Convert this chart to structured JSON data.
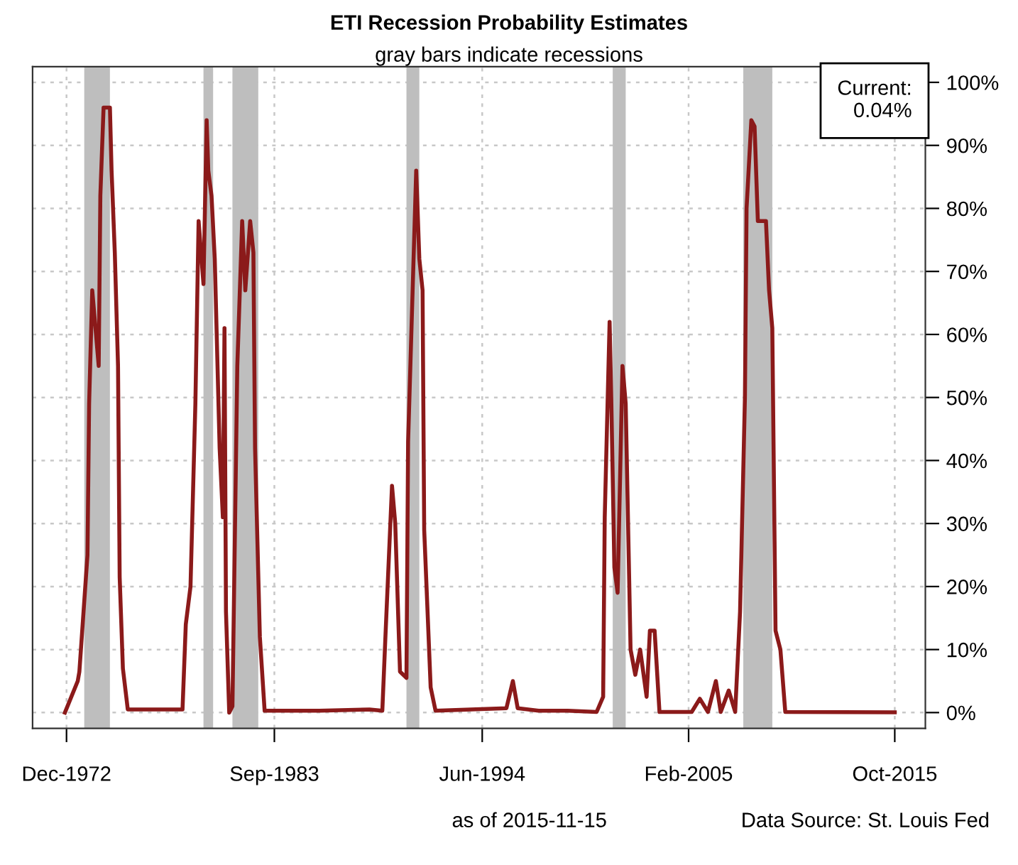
{
  "chart_data": {
    "type": "line",
    "title": "ETI Recession Probability Estimates",
    "subtitle": "gray bars indicate recessions",
    "annotations": [
      "Current:\n0.04%",
      "as of 2015-11-15",
      "Data Source: St. Louis Fed"
    ],
    "x": [
      "1972-11",
      "1973-07",
      "1973-08",
      "1974-01",
      "1974-02",
      "1974-04",
      "1974-08",
      "1974-09",
      "1974-11",
      "1975-03",
      "1975-04",
      "1975-06",
      "1975-08",
      "1975-09",
      "1975-11",
      "1976-02",
      "1978-12",
      "1979-02",
      "1979-05",
      "1979-08",
      "1979-10",
      "1980-01",
      "1980-03",
      "1980-04",
      "1980-06",
      "1980-08",
      "1980-11",
      "1981-01",
      "1981-02",
      "1981-03",
      "1981-05",
      "1981-07",
      "1981-10",
      "1982-01",
      "1982-03",
      "1982-06",
      "1982-08",
      "1982-09",
      "1982-12",
      "1983-03",
      "1986-01",
      "1988-08",
      "1989-04",
      "1989-06",
      "1989-10",
      "1989-12",
      "1990-03",
      "1990-07",
      "1990-08",
      "1991-01",
      "1991-03",
      "1991-05",
      "1991-06",
      "1991-10",
      "1992-01",
      "1995-09",
      "1996-01",
      "1996-04",
      "1997-05",
      "1998-11",
      "2000-05",
      "2000-09",
      "2000-10",
      "2001-01",
      "2001-02",
      "2001-04",
      "2001-06",
      "2001-09",
      "2001-11",
      "2002-02",
      "2002-05",
      "2002-08",
      "2002-12",
      "2003-02",
      "2003-05",
      "2003-08",
      "2005-04",
      "2005-09",
      "2006-02",
      "2006-07",
      "2006-10",
      "2007-03",
      "2007-07",
      "2007-10",
      "2008-01",
      "2008-02",
      "2008-05",
      "2008-07",
      "2008-09",
      "2009-02",
      "2009-04",
      "2009-06",
      "2009-08",
      "2009-11",
      "2010-02",
      "2015-10"
    ],
    "series": [
      {
        "color": "#8b1a1a",
        "values": [
          0,
          5,
          6.5,
          25,
          49,
          67,
          55,
          82,
          96,
          96,
          86,
          73,
          55,
          21.5,
          7,
          0.5,
          0.5,
          14,
          20,
          49,
          78,
          68,
          94,
          86,
          82,
          72,
          42,
          31,
          61,
          16,
          0,
          1,
          55,
          78,
          67,
          78,
          73,
          42,
          12,
          0.3,
          0.3,
          0.5,
          0.3,
          12.5,
          36,
          30,
          6.5,
          5.5,
          43,
          86,
          72,
          67,
          29,
          4,
          0.3,
          0.7,
          5,
          0.7,
          0.3,
          0.3,
          0.1,
          2.5,
          31,
          62,
          50,
          23,
          19,
          55,
          49,
          10,
          6,
          10,
          2.5,
          13,
          13,
          0.1,
          0.1,
          2.2,
          0.1,
          5,
          0.1,
          3.5,
          0.1,
          16,
          50,
          80,
          94,
          93,
          78,
          78,
          67,
          61,
          13,
          10,
          0.1,
          0.04
        ]
      }
    ],
    "bands": [
      {
        "axis": "x",
        "from": "1973-11",
        "to": "1975-03",
        "color": "#bebebe"
      },
      {
        "axis": "x",
        "from": "1980-01",
        "to": "1980-07",
        "color": "#bebebe"
      },
      {
        "axis": "x",
        "from": "1981-07",
        "to": "1982-11",
        "color": "#bebebe"
      },
      {
        "axis": "x",
        "from": "1990-07",
        "to": "1991-03",
        "color": "#bebebe"
      },
      {
        "axis": "x",
        "from": "2001-03",
        "to": "2001-11",
        "color": "#bebebe"
      },
      {
        "axis": "x",
        "from": "2007-12",
        "to": "2009-06",
        "color": "#bebebe"
      }
    ],
    "xlim": [
      "1971-03",
      "2017-05"
    ],
    "xticks": [
      {
        "value": "1972-12",
        "label": "Dec-1972"
      },
      {
        "value": "1983-09",
        "label": "Sep-1983"
      },
      {
        "value": "1994-06",
        "label": "Jun-1994"
      },
      {
        "value": "2005-02",
        "label": "Feb-2005"
      },
      {
        "value": "2015-10",
        "label": "Oct-2015"
      }
    ],
    "ylim": [
      -2.5,
      102.5
    ],
    "yticks": [
      {
        "value": 0,
        "label": "0%"
      },
      {
        "value": 10,
        "label": "10%"
      },
      {
        "value": 20,
        "label": "20%"
      },
      {
        "value": 30,
        "label": "30%"
      },
      {
        "value": 40,
        "label": "40%"
      },
      {
        "value": 50,
        "label": "50%"
      },
      {
        "value": 60,
        "label": "60%"
      },
      {
        "value": 70,
        "label": "70%"
      },
      {
        "value": 80,
        "label": "80%"
      },
      {
        "value": 90,
        "label": "90%"
      },
      {
        "value": 100,
        "label": "100%"
      }
    ],
    "grid": true,
    "line_style": "solid"
  }
}
